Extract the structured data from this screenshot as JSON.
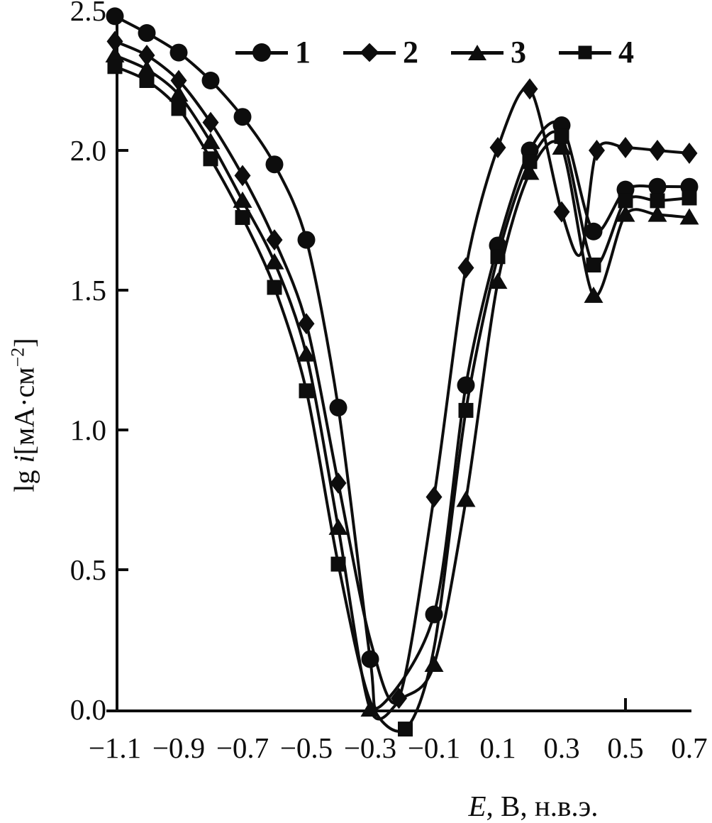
{
  "figure": {
    "background": "#ffffff",
    "ink": "#0d0d0d"
  },
  "axis": {
    "x_var": "E",
    "x_rest": ", В, н.в.э.",
    "y_prefix": "lg ",
    "y_var": "i",
    "y_unit_open": "[мА·см",
    "y_sup": "−2",
    "y_close": "]"
  },
  "chart_data": {
    "type": "line",
    "title": "",
    "xlabel": "E, В, н.в.э.",
    "ylabel": "lg i[мА·см−2]",
    "xlim": [
      -1.16,
      0.73
    ],
    "ylim": [
      -0.1,
      2.55
    ],
    "grid": false,
    "legend_position": "top-center-inside",
    "x_ticks": [
      -1.1,
      -0.9,
      -0.7,
      -0.5,
      -0.3,
      -0.1,
      0.1,
      0.3,
      0.5,
      0.7
    ],
    "x_tick_labels": [
      "−1.1",
      "−0.9",
      "−0.7",
      "−0.5",
      "−0.3",
      "−0.1",
      "0.1",
      "0.3",
      "0.5",
      "0.7"
    ],
    "y_ticks": [
      0.0,
      0.5,
      1.0,
      1.5,
      2.0,
      2.5
    ],
    "y_tick_labels": [
      "0.0",
      "0.5",
      "1.0",
      "1.5",
      "2.0",
      "2.5"
    ],
    "series": [
      {
        "name": "1",
        "marker": "circle",
        "points": [
          [
            -1.1,
            2.48,
            1
          ],
          [
            -1.0,
            2.42,
            1
          ],
          [
            -0.9,
            2.35,
            1
          ],
          [
            -0.8,
            2.25,
            1
          ],
          [
            -0.7,
            2.12,
            1
          ],
          [
            -0.6,
            1.95,
            1
          ],
          [
            -0.5,
            1.68,
            1
          ],
          [
            -0.4,
            1.08,
            1
          ],
          [
            -0.3,
            0.18,
            1
          ],
          [
            -0.27,
            0.01,
            0
          ],
          [
            -0.1,
            0.34,
            1
          ],
          [
            0.0,
            1.16,
            1
          ],
          [
            0.1,
            1.66,
            1
          ],
          [
            0.2,
            2.0,
            1
          ],
          [
            0.3,
            2.09,
            1
          ],
          [
            0.4,
            1.71,
            1
          ],
          [
            0.5,
            1.86,
            1
          ],
          [
            0.6,
            1.87,
            1
          ],
          [
            0.7,
            1.87,
            1
          ]
        ]
      },
      {
        "name": "2",
        "marker": "diamond",
        "points": [
          [
            -1.1,
            2.39,
            1
          ],
          [
            -1.0,
            2.34,
            1
          ],
          [
            -0.9,
            2.25,
            1
          ],
          [
            -0.8,
            2.1,
            1
          ],
          [
            -0.7,
            1.91,
            1
          ],
          [
            -0.6,
            1.68,
            1
          ],
          [
            -0.5,
            1.38,
            1
          ],
          [
            -0.4,
            0.81,
            1
          ],
          [
            -0.3,
            0.25,
            0
          ],
          [
            -0.21,
            0.04,
            1
          ],
          [
            -0.1,
            0.76,
            1
          ],
          [
            0.0,
            1.58,
            1
          ],
          [
            0.1,
            2.01,
            1
          ],
          [
            0.2,
            2.22,
            1
          ],
          [
            0.3,
            1.78,
            1
          ],
          [
            0.36,
            1.63,
            0
          ],
          [
            0.41,
            2.0,
            1
          ],
          [
            0.5,
            2.01,
            1
          ],
          [
            0.6,
            2.0,
            1
          ],
          [
            0.7,
            1.99,
            1
          ]
        ]
      },
      {
        "name": "3",
        "marker": "triangle",
        "points": [
          [
            -1.1,
            2.34,
            1
          ],
          [
            -1.0,
            2.29,
            1
          ],
          [
            -0.9,
            2.2,
            1
          ],
          [
            -0.8,
            2.03,
            1
          ],
          [
            -0.7,
            1.82,
            1
          ],
          [
            -0.6,
            1.6,
            1
          ],
          [
            -0.5,
            1.27,
            1
          ],
          [
            -0.4,
            0.65,
            1
          ],
          [
            -0.3,
            0.0,
            1
          ],
          [
            -0.2,
            0.04,
            0
          ],
          [
            -0.1,
            0.16,
            1
          ],
          [
            0.0,
            0.75,
            1
          ],
          [
            0.1,
            1.53,
            1
          ],
          [
            0.2,
            1.92,
            1
          ],
          [
            0.3,
            2.01,
            1
          ],
          [
            0.4,
            1.48,
            1
          ],
          [
            0.5,
            1.77,
            1
          ],
          [
            0.6,
            1.77,
            1
          ],
          [
            0.7,
            1.76,
            1
          ]
        ]
      },
      {
        "name": "4",
        "marker": "square",
        "points": [
          [
            -1.1,
            2.3,
            1
          ],
          [
            -1.0,
            2.25,
            1
          ],
          [
            -0.9,
            2.15,
            1
          ],
          [
            -0.8,
            1.97,
            1
          ],
          [
            -0.7,
            1.76,
            1
          ],
          [
            -0.6,
            1.51,
            1
          ],
          [
            -0.5,
            1.14,
            1
          ],
          [
            -0.4,
            0.52,
            1
          ],
          [
            -0.3,
            0.03,
            0
          ],
          [
            -0.19,
            -0.07,
            1
          ],
          [
            -0.1,
            0.22,
            0
          ],
          [
            0.0,
            1.07,
            1
          ],
          [
            0.1,
            1.62,
            1
          ],
          [
            0.2,
            1.96,
            1
          ],
          [
            0.3,
            2.05,
            1
          ],
          [
            0.4,
            1.59,
            1
          ],
          [
            0.5,
            1.82,
            1
          ],
          [
            0.6,
            1.82,
            1
          ],
          [
            0.7,
            1.83,
            1
          ]
        ]
      }
    ]
  }
}
